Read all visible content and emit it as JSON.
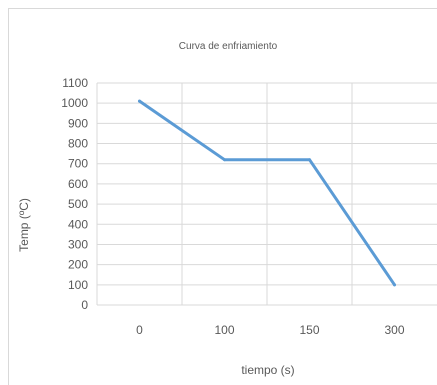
{
  "chart_data": {
    "type": "line",
    "title": "Curva de enfriamiento",
    "xlabel": "tiempo (s)",
    "ylabel": "Temp (ºC)",
    "categories": [
      "0",
      "100",
      "150",
      "300"
    ],
    "series": [
      {
        "values": [
          1010,
          720,
          720,
          100
        ]
      }
    ],
    "ylim": [
      0,
      1100
    ],
    "yticks": [
      "0",
      "100",
      "200",
      "300",
      "400",
      "500",
      "600",
      "700",
      "800",
      "900",
      "1000",
      "1100"
    ],
    "grid": true,
    "legend": "none",
    "colors": {
      "line": "#5b9bd5",
      "grid": "#d9d9d9",
      "text": "#595959"
    }
  }
}
